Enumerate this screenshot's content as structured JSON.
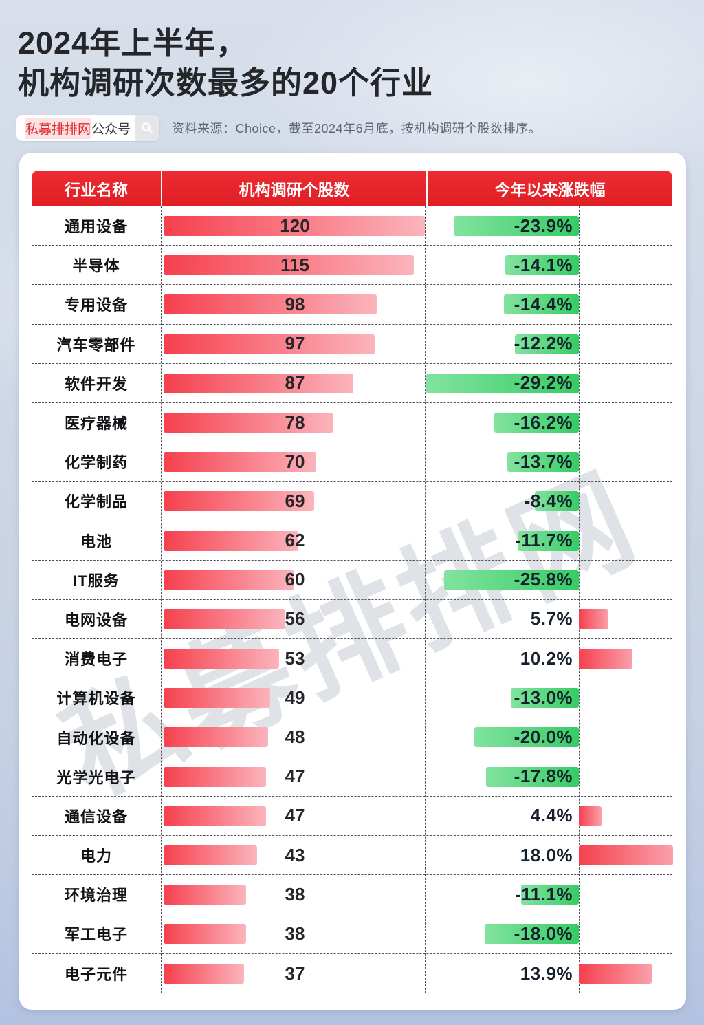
{
  "title": {
    "line1": "2024年上半年，",
    "line2": "机构调研次数最多的20个行业"
  },
  "source_bar": {
    "brand": "私募排排网",
    "brand_suffix": "公众号",
    "search_icon": "magnifier-icon",
    "source_text": "资料来源：Choice，截至2024年6月底，按机构调研个股数排序。"
  },
  "watermark": "私募排排网",
  "table": {
    "headers": [
      "行业名称",
      "机构调研个股数",
      "今年以来涨跌幅"
    ],
    "rows": [
      {
        "industry": "通用设备",
        "count": 120,
        "count_label": "120",
        "change_pct": -23.9,
        "change_label": "-23.9%"
      },
      {
        "industry": "半导体",
        "count": 115,
        "count_label": "115",
        "change_pct": -14.1,
        "change_label": "-14.1%"
      },
      {
        "industry": "专用设备",
        "count": 98,
        "count_label": "98",
        "change_pct": -14.4,
        "change_label": "-14.4%"
      },
      {
        "industry": "汽车零部件",
        "count": 97,
        "count_label": "97",
        "change_pct": -12.2,
        "change_label": "-12.2%"
      },
      {
        "industry": "软件开发",
        "count": 87,
        "count_label": "87",
        "change_pct": -29.2,
        "change_label": "-29.2%"
      },
      {
        "industry": "医疗器械",
        "count": 78,
        "count_label": "78",
        "change_pct": -16.2,
        "change_label": "-16.2%"
      },
      {
        "industry": "化学制药",
        "count": 70,
        "count_label": "70",
        "change_pct": -13.7,
        "change_label": "-13.7%"
      },
      {
        "industry": "化学制品",
        "count": 69,
        "count_label": "69",
        "change_pct": -8.4,
        "change_label": "-8.4%"
      },
      {
        "industry": "电池",
        "count": 62,
        "count_label": "62",
        "change_pct": -11.7,
        "change_label": "-11.7%"
      },
      {
        "industry": "IT服务",
        "count": 60,
        "count_label": "60",
        "change_pct": -25.8,
        "change_label": "-25.8%"
      },
      {
        "industry": "电网设备",
        "count": 56,
        "count_label": "56",
        "change_pct": 5.7,
        "change_label": "5.7%"
      },
      {
        "industry": "消费电子",
        "count": 53,
        "count_label": "53",
        "change_pct": 10.2,
        "change_label": "10.2%"
      },
      {
        "industry": "计算机设备",
        "count": 49,
        "count_label": "49",
        "change_pct": -13.0,
        "change_label": "-13.0%"
      },
      {
        "industry": "自动化设备",
        "count": 48,
        "count_label": "48",
        "change_pct": -20.0,
        "change_label": "-20.0%"
      },
      {
        "industry": "光学光电子",
        "count": 47,
        "count_label": "47",
        "change_pct": -17.8,
        "change_label": "-17.8%"
      },
      {
        "industry": "通信设备",
        "count": 47,
        "count_label": "47",
        "change_pct": 4.4,
        "change_label": "4.4%"
      },
      {
        "industry": "电力",
        "count": 43,
        "count_label": "43",
        "change_pct": 18.0,
        "change_label": "18.0%"
      },
      {
        "industry": "环境治理",
        "count": 38,
        "count_label": "38",
        "change_pct": -11.1,
        "change_label": "-11.1%"
      },
      {
        "industry": "军工电子",
        "count": 38,
        "count_label": "38",
        "change_pct": -18.0,
        "change_label": "-18.0%"
      },
      {
        "industry": "电子元件",
        "count": 37,
        "count_label": "37",
        "change_pct": 13.9,
        "change_label": "13.9%"
      }
    ]
  },
  "chart_data": {
    "type": "bar",
    "orientation": "horizontal",
    "title": "2024年上半年，机构调研次数最多的20个行业",
    "source": "资料来源：Choice，截至2024年6月底，按机构调研个股数排序。",
    "categories": [
      "通用设备",
      "半导体",
      "专用设备",
      "汽车零部件",
      "软件开发",
      "医疗器械",
      "化学制药",
      "化学制品",
      "电池",
      "IT服务",
      "电网设备",
      "消费电子",
      "计算机设备",
      "自动化设备",
      "光学光电子",
      "通信设备",
      "电力",
      "环境治理",
      "军工电子",
      "电子元件"
    ],
    "series": [
      {
        "name": "机构调研个股数",
        "values": [
          120,
          115,
          98,
          97,
          87,
          78,
          70,
          69,
          62,
          60,
          56,
          53,
          49,
          48,
          47,
          47,
          43,
          38,
          38,
          37
        ]
      },
      {
        "name": "今年以来涨跌幅(%)",
        "values": [
          -23.9,
          -14.1,
          -14.4,
          -12.2,
          -29.2,
          -16.2,
          -13.7,
          -8.4,
          -11.7,
          -25.8,
          5.7,
          10.2,
          -13.0,
          -20.0,
          -17.8,
          4.4,
          18.0,
          -11.1,
          -18.0,
          13.9
        ]
      }
    ],
    "count_axis_range": [
      0,
      120
    ],
    "grid": "dashed row separators and dashed column dividers",
    "legend_position": "none",
    "negative_color": "green",
    "positive_color": "red"
  },
  "colors": {
    "header_bg": "#e01e25",
    "brand_red": "#e2282e",
    "title_color": "#242629",
    "red_bar_start": "#f6404e",
    "red_bar_end": "#fbb4bc",
    "green_bar_start": "#82e39f",
    "green_bar_end": "#35cc64"
  }
}
